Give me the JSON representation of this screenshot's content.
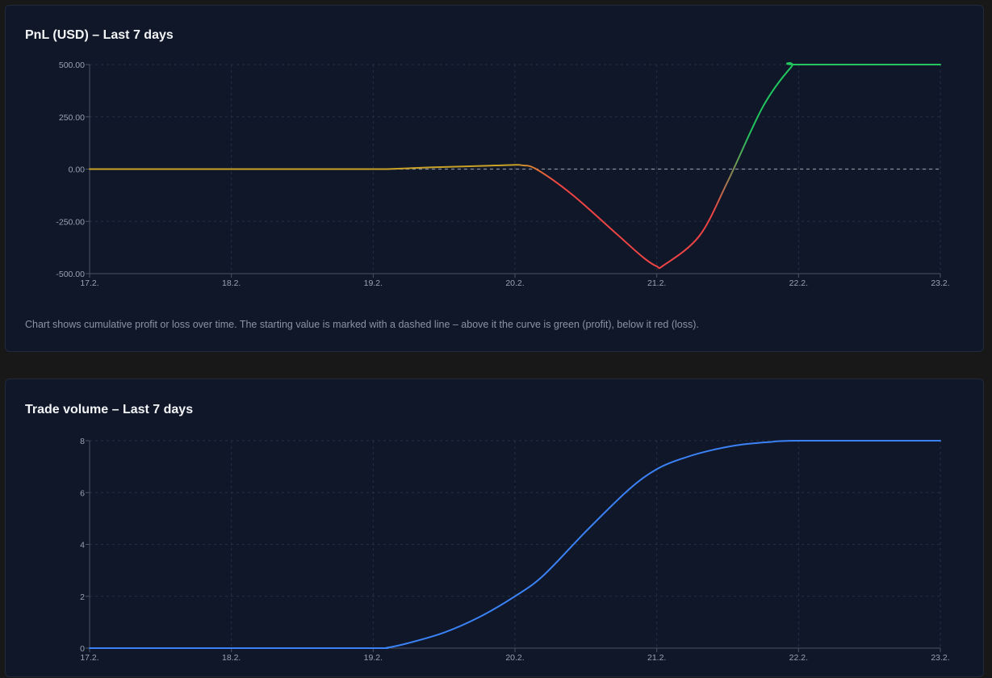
{
  "pnl_card": {
    "title": "PnL (USD) – Last 7 days",
    "note": "Chart shows cumulative profit or loss over time. The starting value is marked with a dashed line – above it the curve is green (profit), below it red (loss)."
  },
  "volume_card": {
    "title": "Trade volume – Last 7 days"
  },
  "colors": {
    "profit": "#22c55e",
    "loss": "#ef4444",
    "flat": "#c9a227",
    "volume": "#3b82f6",
    "axis": "#4b5563",
    "grid": "#243044",
    "baseline": "#8a8f99"
  },
  "chart_data": [
    {
      "type": "line",
      "title": "PnL (USD) – Last 7 days",
      "x_ticks": [
        "17.2.",
        "18.2.",
        "19.2.",
        "20.2.",
        "21.2.",
        "22.2.",
        "23.2."
      ],
      "y_ticks": [
        "500.00",
        "250.00",
        "0.00",
        "-250.00",
        "-500.00"
      ],
      "ylim": [
        -500,
        500
      ],
      "xlim": [
        "17.2.",
        "23.2."
      ],
      "baseline": 0,
      "grid": true,
      "series": [
        {
          "x": [
            "17.2.",
            "18.2.",
            "19.2.",
            "19.2.",
            "19.5.",
            "19.9.",
            "20.2.",
            "20.2.",
            "20.3.",
            "20.5.",
            "20.8.",
            "21.0.",
            "21.2.",
            "21.2.",
            "21.4.",
            "21.6.",
            "21.8.",
            "22.0.",
            "22.2.",
            "23.2."
          ],
          "x_values": [
            0,
            1,
            2,
            2.1,
            2.4,
            2.8,
            3.0,
            3.05,
            3.15,
            3.4,
            3.7,
            3.9,
            4.0,
            4.05,
            4.3,
            4.5,
            4.75,
            4.95,
            5.0,
            6.0
          ],
          "y": [
            0,
            0,
            0,
            0,
            8,
            16,
            20,
            18,
            0,
            -120,
            -300,
            -420,
            -465,
            -460,
            -320,
            -60,
            300,
            490,
            500,
            500
          ]
        }
      ]
    },
    {
      "type": "line",
      "title": "Trade volume – Last 7 days",
      "x_ticks": [
        "17.2.",
        "18.2.",
        "19.2.",
        "20.2.",
        "21.2.",
        "22.2.",
        "23.2."
      ],
      "y_ticks": [
        "8",
        "6",
        "4",
        "2",
        "0"
      ],
      "ylim": [
        0,
        8
      ],
      "grid": true,
      "series": [
        {
          "x_values": [
            0,
            1,
            2,
            2.1,
            2.25,
            2.5,
            2.75,
            3.0,
            3.2,
            3.5,
            3.8,
            4.0,
            4.2,
            4.4,
            4.6,
            4.8,
            5.0,
            6.0
          ],
          "y": [
            0,
            0,
            0,
            0.02,
            0.2,
            0.6,
            1.2,
            2.0,
            2.8,
            4.5,
            6.1,
            6.9,
            7.35,
            7.65,
            7.85,
            7.95,
            8.0,
            8.0
          ]
        }
      ]
    }
  ]
}
